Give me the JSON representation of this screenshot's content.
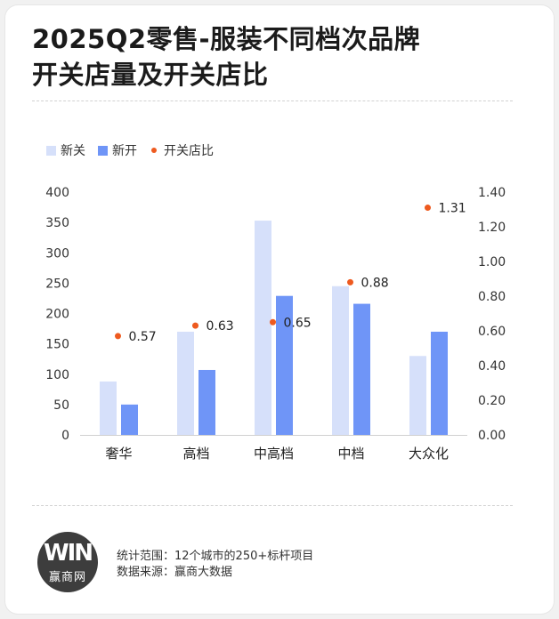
{
  "title_line1": "2025Q2零售-服装不同档次品牌",
  "title_line2": "开关店量及开关店比",
  "legend": {
    "close": "新关",
    "open": "新开",
    "ratio": "开关店比"
  },
  "colors": {
    "close": "#d6e0fa",
    "open": "#6f95f7",
    "ratio": "#ee5a1f"
  },
  "chart_data": {
    "type": "bar",
    "categories": [
      "奢华",
      "高档",
      "中高档",
      "中档",
      "大众化"
    ],
    "series": [
      {
        "name": "新关",
        "type": "bar",
        "axis": "left",
        "values": [
          88,
          170,
          353,
          245,
          130
        ]
      },
      {
        "name": "新开",
        "type": "bar",
        "axis": "left",
        "values": [
          50,
          107,
          229,
          216,
          170
        ]
      },
      {
        "name": "开关店比",
        "type": "scatter",
        "axis": "right",
        "values": [
          0.57,
          0.63,
          0.65,
          0.88,
          1.31
        ],
        "labels": [
          "0.57",
          "0.63",
          "0.65",
          "0.88",
          "1.31"
        ]
      }
    ],
    "y_left": {
      "min": 0,
      "max": 400,
      "ticks": [
        "0",
        "50",
        "100",
        "150",
        "200",
        "250",
        "300",
        "350",
        "400"
      ]
    },
    "y_right": {
      "min": 0,
      "max": 1.4,
      "ticks": [
        "0.00",
        "0.20",
        "0.40",
        "0.60",
        "0.80",
        "1.00",
        "1.20",
        "1.40"
      ]
    },
    "grid": false,
    "legend_position": "top-left"
  },
  "footer": {
    "logo_mark": "WIN",
    "logo_name": "赢商网",
    "scope": "统计范围：12个城市的250+标杆项目",
    "source": "数据来源：赢商大数据"
  }
}
